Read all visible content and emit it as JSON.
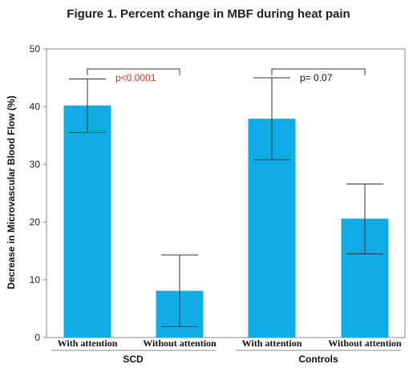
{
  "chart_data": {
    "type": "bar",
    "title": "Figure 1. Percent change in MBF during heat pain",
    "ylabel": "Decrease in Microvascular Blood Flow (%)",
    "xlabel": "",
    "ylim": [
      0,
      50
    ],
    "yticks": [
      0,
      10,
      20,
      30,
      40,
      50
    ],
    "grid": false,
    "bar_color": "#10ACE6",
    "groups": [
      {
        "name": "SCD",
        "bars": [
          {
            "category": "With attention",
            "value": 40.2,
            "err_low": 35.5,
            "err_high": 44.8
          },
          {
            "category": "Without attention",
            "value": 8.1,
            "err_low": 1.9,
            "err_high": 14.3
          }
        ],
        "annotation": {
          "text": "p<0.0001",
          "color": "#E0302A"
        }
      },
      {
        "name": "Controls",
        "bars": [
          {
            "category": "With attention",
            "value": 37.9,
            "err_low": 30.8,
            "err_high": 45.0
          },
          {
            "category": "Without attention",
            "value": 20.6,
            "err_low": 14.5,
            "err_high": 26.6
          }
        ],
        "annotation": {
          "text": "p= 0.07",
          "color": "#111111"
        }
      }
    ]
  }
}
